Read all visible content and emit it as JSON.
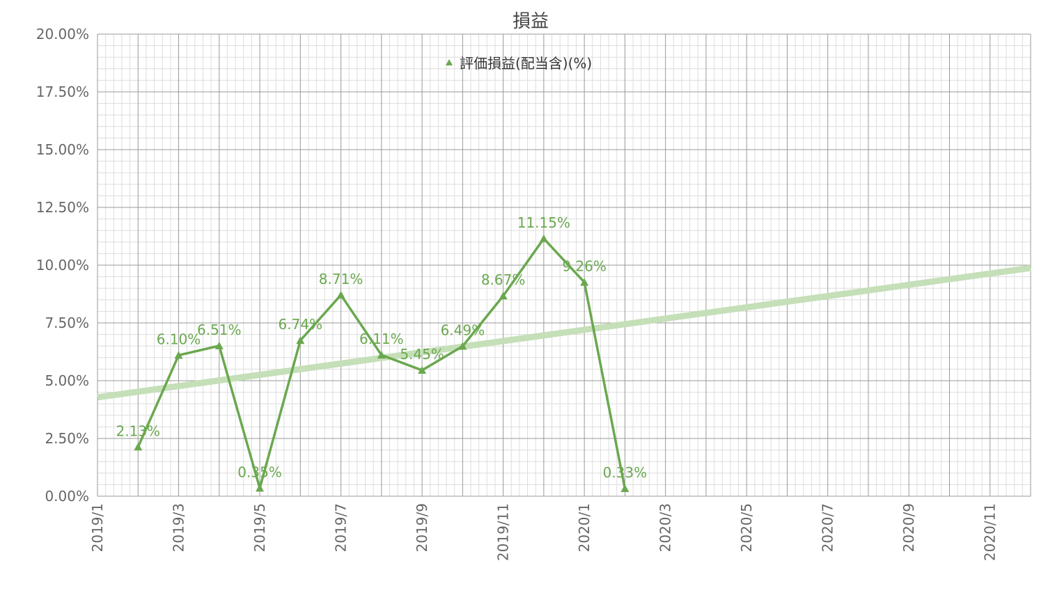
{
  "colors": {
    "series": "#6aa84f",
    "trend": "#c5dfb8",
    "grid_major": "#999999",
    "grid_minor": "#dddddd",
    "axis_text": "#666666",
    "title_text": "#444444"
  },
  "chart_data": {
    "type": "line",
    "title": "損益",
    "xlabel": "",
    "ylabel": "",
    "xlim": [
      "2019-01-01",
      "2020-12-01"
    ],
    "ylim": [
      0,
      20
    ],
    "y_tick_values": [
      0,
      2.5,
      5,
      7.5,
      10,
      12.5,
      15,
      17.5,
      20
    ],
    "y_tick_labels": [
      "0.00%",
      "2.50%",
      "5.00%",
      "7.50%",
      "10.00%",
      "12.50%",
      "15.00%",
      "17.50%",
      "20.00%"
    ],
    "x_tick_values": [
      "2019-01-01",
      "2019-03-01",
      "2019-05-01",
      "2019-07-01",
      "2019-09-01",
      "2019-11-01",
      "2020-01-01",
      "2020-03-01",
      "2020-05-01",
      "2020-07-01",
      "2020-09-01",
      "2020-11-01"
    ],
    "x_tick_labels": [
      "2019/1",
      "2019/3",
      "2019/5",
      "2019/7",
      "2019/9",
      "2019/11",
      "2020/1",
      "2020/3",
      "2020/5",
      "2020/7",
      "2020/9",
      "2020/11"
    ],
    "grid": true,
    "legend_position": "top-center",
    "series": [
      {
        "name": "評価損益(配当含)(%)",
        "marker": "triangle",
        "x": [
          "2019-02-01",
          "2019-03-01",
          "2019-04-01",
          "2019-05-01",
          "2019-06-01",
          "2019-07-01",
          "2019-08-01",
          "2019-09-01",
          "2019-10-01",
          "2019-11-01",
          "2019-12-01",
          "2020-01-01",
          "2020-02-01"
        ],
        "y": [
          2.13,
          6.1,
          6.51,
          0.35,
          6.74,
          8.71,
          6.11,
          5.45,
          6.49,
          8.67,
          11.15,
          9.26,
          0.33
        ],
        "labels": [
          "2.13%",
          "6.10%",
          "6.51%",
          "0.35%",
          "6.74%",
          "8.71%",
          "6.11%",
          "5.45%",
          "6.49%",
          "8.67%",
          "11.15%",
          "9.26%",
          "0.33%"
        ]
      }
    ],
    "trendline": {
      "type": "linear",
      "x": [
        "2019-01-01",
        "2020-12-01"
      ],
      "y": [
        4.28,
        9.88
      ]
    }
  }
}
